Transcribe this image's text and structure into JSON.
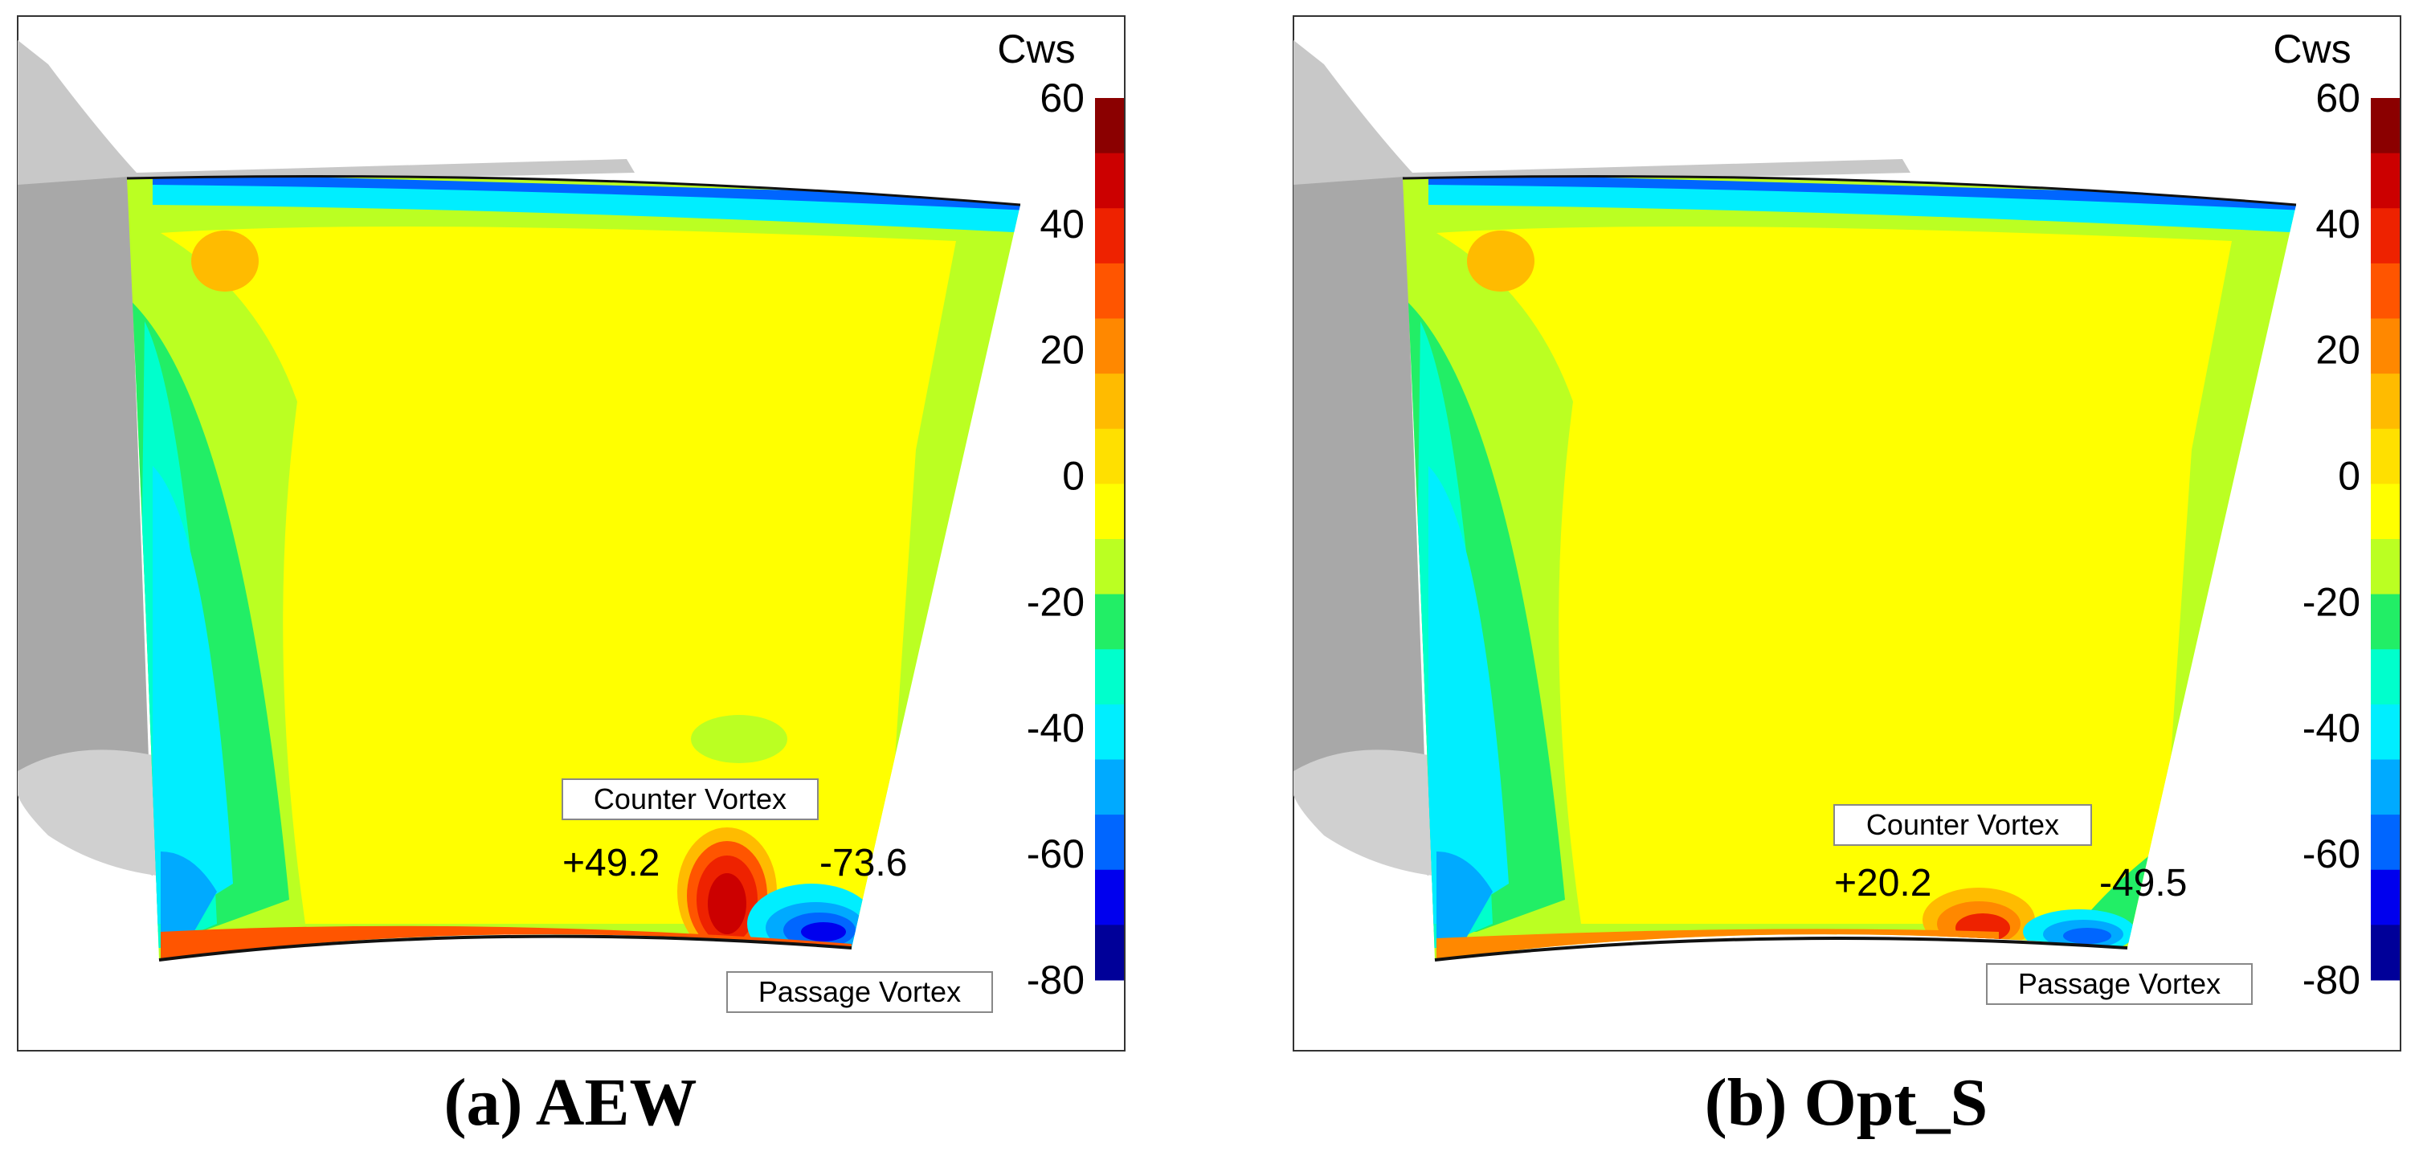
{
  "figure": {
    "panels": [
      {
        "id": "a",
        "caption": "(a) AEW",
        "colorbar_title": "Cws",
        "counter_vortex_label": "Counter Vortex",
        "passage_vortex_label": "Passage Vortex",
        "counter_vortex_value": "+49.2",
        "passage_vortex_value": "-73.6"
      },
      {
        "id": "b",
        "caption": "(b) Opt_S",
        "colorbar_title": "Cws",
        "counter_vortex_label": "Counter Vortex",
        "passage_vortex_label": "Passage Vortex",
        "counter_vortex_value": "+20.2",
        "passage_vortex_value": "-49.5"
      }
    ],
    "colorbar": {
      "range": [
        -80,
        60
      ],
      "step": 10,
      "tick_labels": [
        "60",
        "40",
        "20",
        "0",
        "-20",
        "-40",
        "-60",
        "-80"
      ],
      "colors_top_to_bottom": [
        "#8b0000",
        "#cc0000",
        "#ee2200",
        "#ff5500",
        "#ff8800",
        "#ffbb00",
        "#ffe000",
        "#ffff00",
        "#bbff22",
        "#22ee66",
        "#00ffcc",
        "#00eeff",
        "#00aaff",
        "#0066ff",
        "#0000ee",
        "#000099"
      ]
    }
  }
}
